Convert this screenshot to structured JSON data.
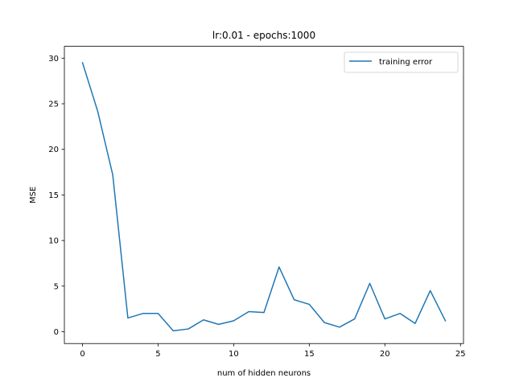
{
  "chart_data": {
    "type": "line",
    "title": "lr:0.01 - epochs:1000",
    "xlabel": "num of hidden neurons",
    "ylabel": "MSE",
    "xlim": [
      -1.2,
      25.2
    ],
    "ylim": [
      -1.3,
      31.3
    ],
    "xticks": [
      0,
      5,
      10,
      15,
      20,
      25
    ],
    "yticks": [
      0,
      5,
      10,
      15,
      20,
      25,
      30
    ],
    "grid": false,
    "legend_position": "top-right",
    "series": [
      {
        "name": "training error",
        "color": "#1f77b4",
        "x": [
          0,
          1,
          2,
          3,
          4,
          5,
          6,
          7,
          8,
          9,
          10,
          11,
          12,
          13,
          14,
          15,
          16,
          17,
          18,
          19,
          20,
          21,
          22,
          23,
          24
        ],
        "y": [
          29.5,
          24.2,
          17.2,
          1.5,
          2.0,
          2.0,
          0.1,
          0.3,
          1.3,
          0.8,
          1.2,
          2.2,
          2.1,
          7.1,
          3.5,
          3.0,
          1.0,
          0.5,
          1.4,
          5.3,
          1.4,
          2.0,
          0.9,
          4.5,
          1.2
        ]
      }
    ]
  }
}
